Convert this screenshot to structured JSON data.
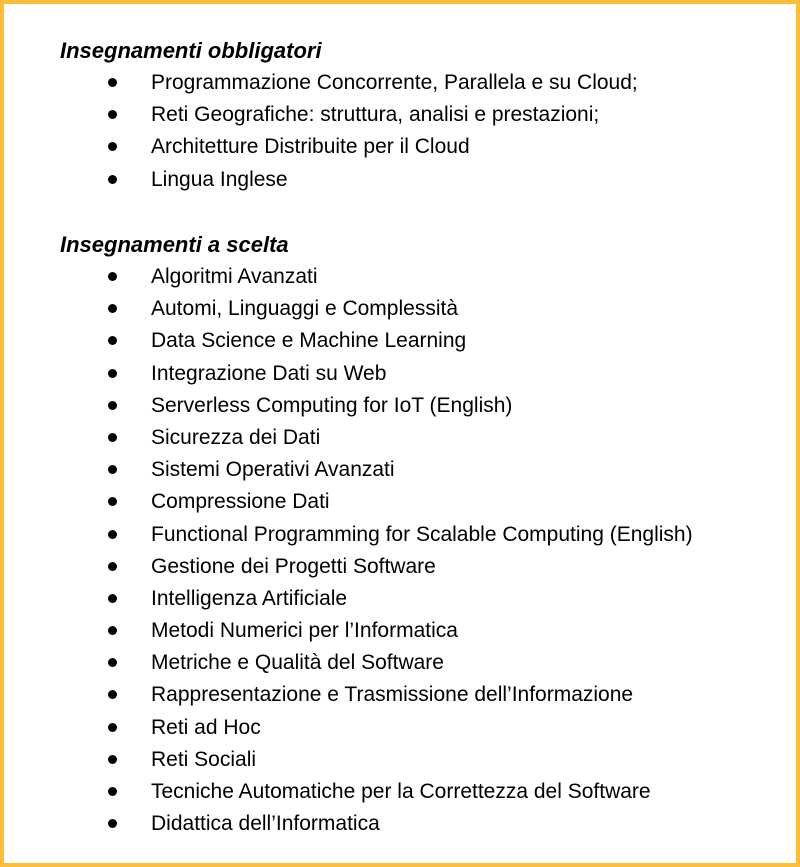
{
  "sections": [
    {
      "title": "Insegnamenti obbligatori",
      "items": [
        "Programmazione Concorrente, Parallela e su Cloud;",
        "Reti Geografiche: struttura, analisi e prestazioni;",
        "Architetture Distribuite per il Cloud",
        "Lingua Inglese"
      ]
    },
    {
      "title": "Insegnamenti a scelta",
      "items": [
        "Algoritmi Avanzati",
        "Automi, Linguaggi e Complessità",
        "Data Science e Machine Learning",
        "Integrazione Dati su Web",
        "Serverless Computing for IoT (English)",
        "Sicurezza dei Dati",
        "Sistemi Operativi Avanzati",
        "Compressione Dati",
        "Functional Programming for Scalable Computing (English)",
        "Gestione dei Progetti Software",
        "Intelligenza Artificiale",
        "Metodi Numerici per l’Informatica",
        "Metriche e Qualità del Software",
        "Rappresentazione e Trasmissione dell’Informazione",
        "Reti ad Hoc",
        "Reti Sociali",
        "Tecniche Automatiche per la Correttezza del Software",
        "Didattica dell’Informatica"
      ]
    }
  ],
  "colors": {
    "border": "#fbbd3a",
    "text": "#000000",
    "background": "#ffffff"
  }
}
